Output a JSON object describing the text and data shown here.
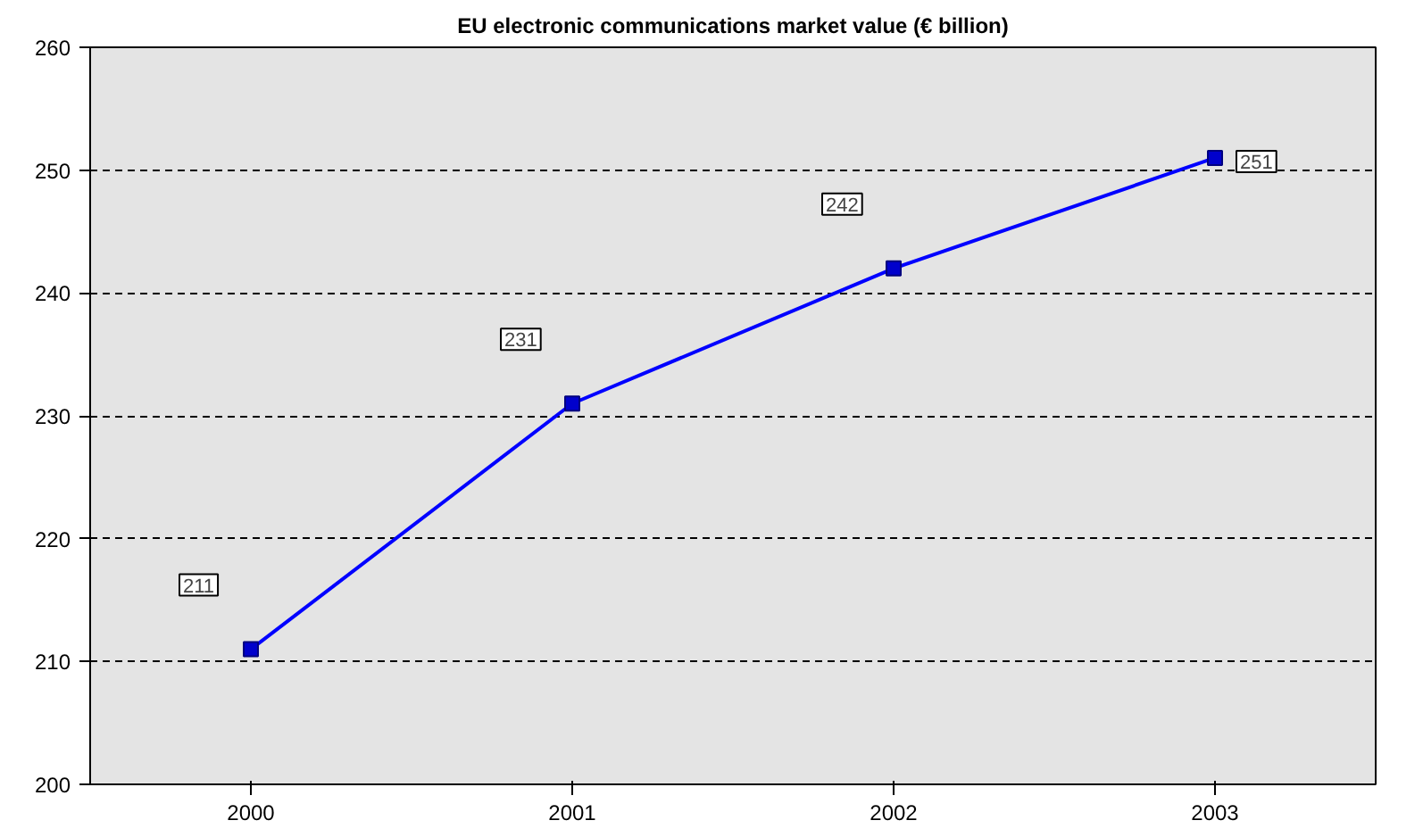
{
  "chart_data": {
    "type": "line",
    "title": "EU electronic communications market value (€ billion)",
    "categories": [
      "2000",
      "2001",
      "2002",
      "2003"
    ],
    "series": [
      {
        "color": "#0000ff",
        "values": [
          211,
          231,
          242,
          251
        ]
      }
    ],
    "ylim": [
      200,
      260
    ],
    "yticks": [
      200,
      210,
      220,
      230,
      240,
      250,
      260
    ],
    "grid": "y",
    "marker": "square",
    "line_style": "solid",
    "data_labels": true
  }
}
